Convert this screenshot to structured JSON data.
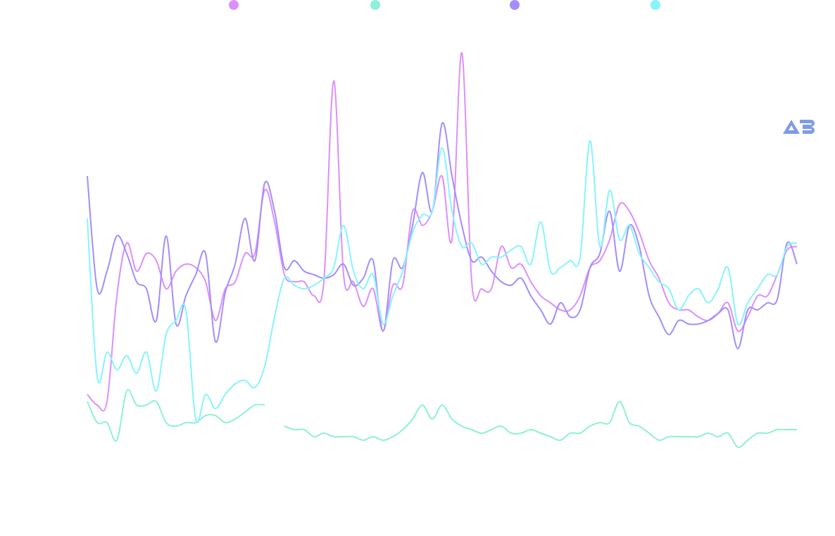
{
  "chart_data": {
    "type": "line",
    "title": "",
    "xlabel": "",
    "ylabel": "",
    "x": [
      0,
      1,
      2,
      3,
      4,
      5,
      6,
      7,
      8,
      9,
      10,
      11,
      12,
      13,
      14,
      15,
      16,
      17,
      18,
      19,
      20,
      21,
      22,
      23,
      24,
      25,
      26,
      27,
      28,
      29,
      30,
      31,
      32,
      33,
      34,
      35,
      36,
      37,
      38,
      39,
      40,
      41,
      42,
      43,
      44,
      45,
      46,
      47,
      48,
      49,
      50,
      51,
      52,
      53,
      54,
      55,
      56,
      57,
      58,
      59,
      60,
      61,
      62,
      63,
      64,
      65,
      66,
      67,
      68,
      69,
      70,
      71,
      72
    ],
    "xlim": [
      0,
      72
    ],
    "ylim": [
      0,
      640
    ],
    "grid": false,
    "legend": "top",
    "series": [
      {
        "color": "#dd8ffb",
        "values": [
          140,
          125,
          130,
          280,
          355,
          315,
          340,
          330,
          290,
          315,
          325,
          320,
          300,
          245,
          290,
          300,
          340,
          340,
          430,
          385,
          310,
          300,
          300,
          280,
          300,
          585,
          310,
          300,
          265,
          290,
          230,
          295,
          295,
          400,
          380,
          400,
          450,
          360,
          625,
          300,
          290,
          290,
          350,
          320,
          325,
          300,
          280,
          270,
          260,
          260,
          280,
          320,
          330,
          360,
          410,
          400,
          370,
          330,
          305,
          270,
          260,
          260,
          250,
          245,
          255,
          270,
          230,
          250,
          280,
          280,
          310,
          345,
          350
        ]
      },
      {
        "color": "#8ef0d8",
        "values": [
          130,
          100,
          100,
          75,
          145,
          125,
          125,
          130,
          100,
          95,
          100,
          100,
          110,
          110,
          100,
          105,
          115,
          125,
          125,
          null,
          95,
          90,
          90,
          80,
          85,
          80,
          80,
          80,
          75,
          80,
          75,
          80,
          90,
          105,
          125,
          105,
          125,
          105,
          95,
          90,
          85,
          90,
          95,
          85,
          85,
          90,
          85,
          80,
          75,
          85,
          85,
          95,
          100,
          100,
          130,
          100,
          95,
          85,
          75,
          80,
          80,
          80,
          80,
          85,
          80,
          85,
          65,
          75,
          85,
          85,
          90,
          90,
          90
        ]
      },
      {
        "color": "#a48dfb",
        "values": [
          450,
          290,
          315,
          365,
          340,
          300,
          290,
          245,
          365,
          240,
          280,
          310,
          340,
          215,
          285,
          325,
          390,
          330,
          440,
          400,
          320,
          330,
          315,
          310,
          305,
          310,
          325,
          295,
          305,
          330,
          230,
          330,
          320,
          380,
          455,
          400,
          525,
          450,
          380,
          330,
          335,
          315,
          300,
          295,
          305,
          280,
          260,
          240,
          270,
          250,
          260,
          320,
          340,
          400,
          315,
          380,
          350,
          280,
          250,
          225,
          245,
          240,
          240,
          245,
          255,
          260,
          205,
          260,
          260,
          270,
          275,
          355,
          325
        ]
      },
      {
        "color": "#86f4fc",
        "values": [
          390,
          165,
          200,
          175,
          195,
          170,
          200,
          145,
          225,
          245,
          260,
          105,
          140,
          120,
          140,
          155,
          160,
          150,
          180,
          250,
          305,
          295,
          290,
          295,
          305,
          320,
          380,
          315,
          290,
          310,
          240,
          280,
          315,
          370,
          395,
          400,
          490,
          400,
          350,
          355,
          325,
          335,
          335,
          345,
          350,
          325,
          385,
          315,
          320,
          330,
          335,
          500,
          350,
          430,
          360,
          380,
          340,
          320,
          300,
          290,
          260,
          280,
          290,
          270,
          290,
          320,
          240,
          270,
          290,
          310,
          310,
          350,
          355
        ]
      }
    ]
  },
  "logo": {
    "text": "AB",
    "color": "#7f9ae8"
  }
}
